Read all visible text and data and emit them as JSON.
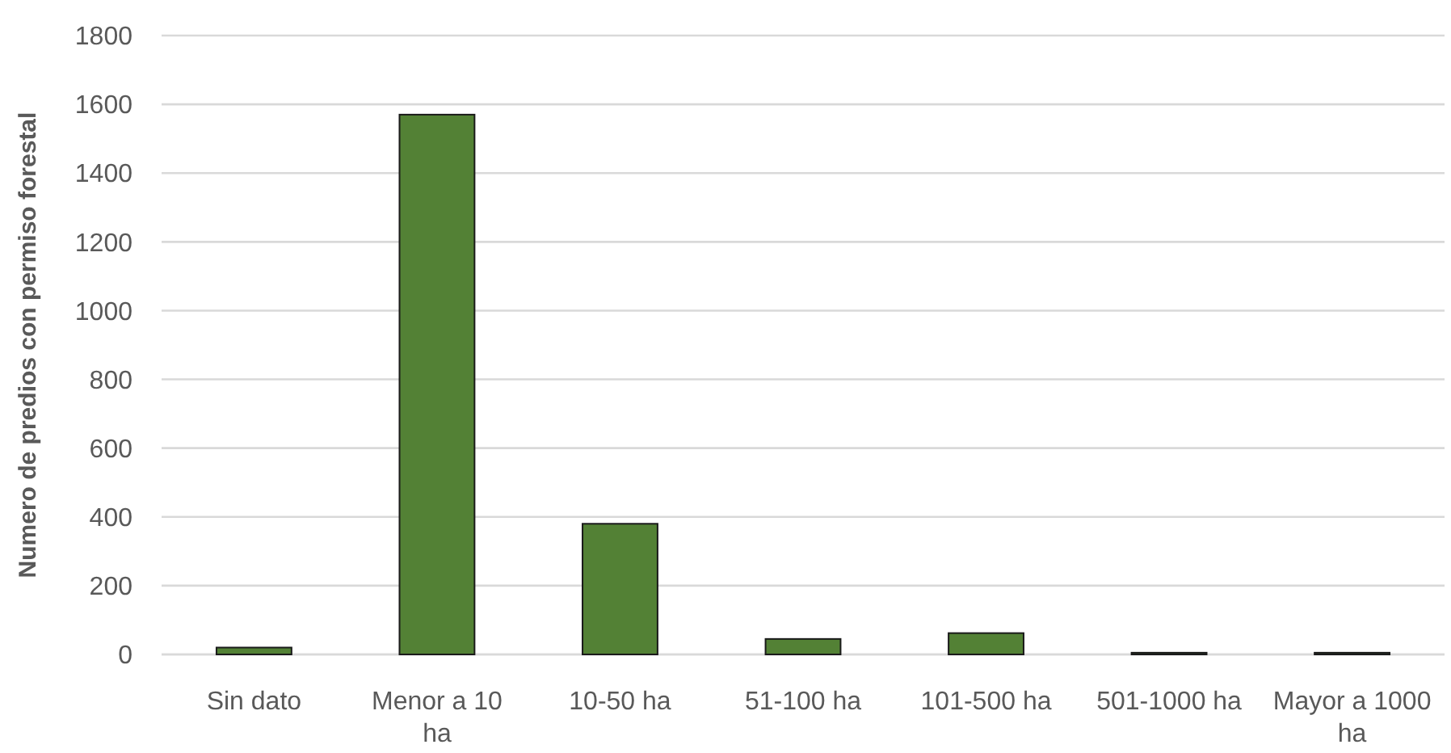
{
  "chart_data": {
    "type": "bar",
    "ylabel": "Numero de predios con permiso forestal",
    "categories": [
      "Sin dato",
      "Menor a 10 ha",
      "10-50 ha",
      "51-100 ha",
      "101-500 ha",
      "501-1000 ha",
      "Mayor a 1000 ha"
    ],
    "values": [
      20,
      1570,
      380,
      45,
      62,
      5,
      5
    ],
    "color": "#538135",
    "ylim": [
      0,
      1800
    ],
    "yticks": [
      0,
      200,
      400,
      600,
      800,
      1000,
      1200,
      1400,
      1600,
      1800
    ],
    "grid": "y"
  }
}
